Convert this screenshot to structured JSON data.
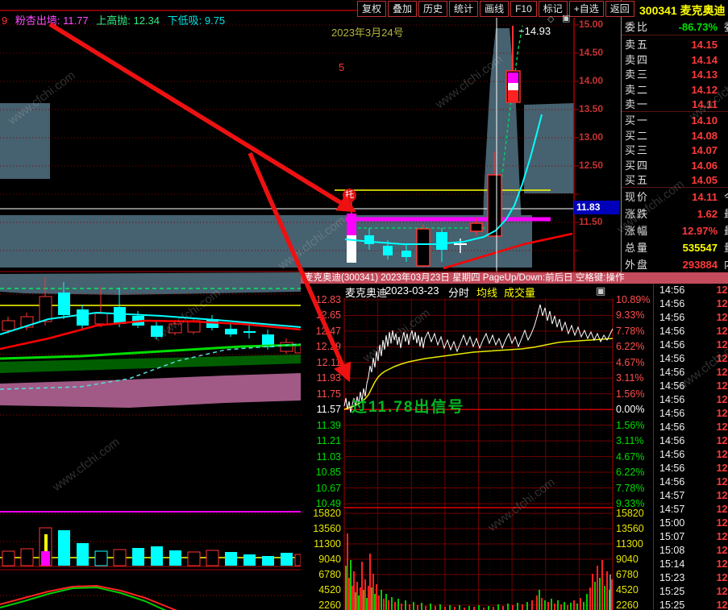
{
  "app": {
    "watermark": "www.cfchi.com"
  },
  "topbar": {
    "indicator_prefix": "9",
    "indicators": [
      {
        "label": "粉杏出墙",
        "value": "11.77",
        "color": "#ff4bff"
      },
      {
        "label": "上高抛",
        "value": "12.34",
        "color": "#33ee88"
      },
      {
        "label": "下低吸",
        "value": "9.75",
        "color": "#00e5e5"
      }
    ],
    "buttons": [
      "复权",
      "叠加",
      "历史",
      "统计",
      "画线",
      "F10",
      "标记",
      "+自选",
      "返回"
    ]
  },
  "main_chart": {
    "date_note": "2023年3月24号",
    "count_note": "5",
    "high_label": "~14.93",
    "tuo_badge": "托",
    "price_axis": [
      "15.00",
      "14.50",
      "14.00",
      "13.50",
      "13.00",
      "12.50",
      "11.50"
    ],
    "price_tag": "11.83",
    "diamond_icon": "◇",
    "panel_icon": "▣"
  },
  "quote_panel": {
    "code": "300341",
    "name": "麦克奥迪",
    "weibi": {
      "label": "委比",
      "value": "-86.73%",
      "suffix": "委"
    },
    "asks": [
      {
        "label": "卖五",
        "price": "14.15"
      },
      {
        "label": "卖四",
        "price": "14.14"
      },
      {
        "label": "卖三",
        "price": "14.13"
      },
      {
        "label": "卖二",
        "price": "14.12"
      },
      {
        "label": "卖一",
        "price": "14.11"
      }
    ],
    "bids": [
      {
        "label": "买一",
        "price": "14.10"
      },
      {
        "label": "买二",
        "price": "14.08"
      },
      {
        "label": "买三",
        "price": "14.07"
      },
      {
        "label": "买四",
        "price": "14.06"
      },
      {
        "label": "买五",
        "price": "14.05"
      }
    ],
    "stats": [
      {
        "label": "现价",
        "value": "14.11",
        "suffix": "今",
        "color": "#ff3a3a"
      },
      {
        "label": "涨跌",
        "value": "1.62",
        "suffix": "最",
        "color": "#ff3a3a"
      },
      {
        "label": "涨幅",
        "value": "12.97%",
        "suffix": "最",
        "color": "#ff3a3a"
      },
      {
        "label": "总量",
        "value": "535547",
        "suffix": "量",
        "color": "#ffff00"
      },
      {
        "label": "外盘",
        "value": "293884",
        "suffix": "内",
        "color": "#ff3a3a"
      }
    ]
  },
  "info_bar": {
    "text": "麦克奥迪(300341) 2023年03月23日 星期四 PageUp/Down:前后日 空格键:操作"
  },
  "intraday": {
    "title": "麦克奥迪",
    "date": "2023-03-23",
    "mode": "分时",
    "legend_avg": "均线",
    "legend_vol": "成交量",
    "panel_icon": "▣",
    "signal": "过11.78出信号",
    "left_axis": [
      "12.83",
      "12.65",
      "12.47",
      "12.29",
      "12.11",
      "11.93",
      "11.75",
      "11.57",
      "11.39",
      "11.21",
      "11.03",
      "10.85",
      "10.67",
      "10.49"
    ],
    "right_axis": [
      "10.89%",
      "9.33%",
      "7.78%",
      "6.22%",
      "4.67%",
      "3.11%",
      "1.56%",
      "0.00%",
      "1.56%",
      "3.11%",
      "4.67%",
      "6.22%",
      "7.78%",
      "9.33%"
    ],
    "vol_axis": [
      "15820",
      "13560",
      "11300",
      "9040",
      "6780",
      "4520",
      "2260"
    ]
  },
  "tape": {
    "rows": [
      {
        "time": "14:56",
        "price": "12."
      },
      {
        "time": "14:56",
        "price": "12."
      },
      {
        "time": "14:56",
        "price": "12."
      },
      {
        "time": "14:56",
        "price": "12."
      },
      {
        "time": "14:56",
        "price": "12."
      },
      {
        "time": "14:56",
        "price": "12."
      },
      {
        "time": "14:56",
        "price": "12."
      },
      {
        "time": "14:56",
        "price": "12."
      },
      {
        "time": "14:56",
        "price": "12."
      },
      {
        "time": "14:56",
        "price": "12."
      },
      {
        "time": "14:56",
        "price": "12."
      },
      {
        "time": "14:56",
        "price": "12."
      },
      {
        "time": "14:56",
        "price": "12."
      },
      {
        "time": "14:56",
        "price": "12."
      },
      {
        "time": "14:56",
        "price": "12."
      },
      {
        "time": "14:57",
        "price": "12."
      },
      {
        "time": "14:57",
        "price": "12."
      },
      {
        "time": "15:00",
        "price": "12."
      },
      {
        "time": "15:07",
        "price": "12."
      },
      {
        "time": "15:08",
        "price": "12."
      },
      {
        "time": "15:14",
        "price": "12."
      },
      {
        "time": "15:23",
        "price": "12."
      },
      {
        "time": "15:25",
        "price": "12."
      },
      {
        "time": "15:25",
        "price": "12."
      }
    ]
  },
  "chart_data": [
    {
      "type": "candlestick",
      "name": "daily-kline-300341",
      "ylim": [
        11.5,
        15.0
      ],
      "tick_labels": [
        "15.00",
        "14.50",
        "14.00",
        "13.50",
        "13.00",
        "12.50",
        "11.50"
      ],
      "annotations": [
        "14.93 day-high wick",
        "11.83 current-price tag",
        "托 support marker",
        "2023年3月24号",
        "5"
      ]
    },
    {
      "type": "line",
      "name": "intraday-price",
      "prev_close": "11.57",
      "axis_high": "12.83",
      "axis_low": "10.49",
      "points": [
        0,
        132,
        2,
        122,
        4,
        136,
        6,
        126,
        8,
        140,
        10,
        130,
        12,
        122,
        14,
        133,
        16,
        120,
        18,
        130,
        20,
        114,
        22,
        126,
        24,
        110,
        26,
        120,
        28,
        104,
        30,
        96,
        32,
        82,
        34,
        90,
        36,
        72,
        38,
        84,
        40,
        64,
        42,
        76,
        44,
        56,
        46,
        70,
        48,
        50,
        50,
        62,
        52,
        44,
        54,
        58,
        56,
        40,
        58,
        54,
        60,
        38,
        62,
        50,
        64,
        42,
        66,
        56,
        68,
        46,
        70,
        60,
        72,
        48,
        74,
        40,
        76,
        52,
        78,
        42,
        80,
        56,
        82,
        44,
        84,
        38,
        86,
        50,
        88,
        40,
        90,
        54,
        92,
        44,
        94,
        58,
        96,
        46,
        98,
        60,
        100,
        48,
        104,
        40,
        108,
        52,
        112,
        42,
        116,
        56,
        120,
        46,
        124,
        60,
        128,
        50,
        132,
        62,
        136,
        52,
        140,
        64,
        144,
        54,
        148,
        44,
        152,
        56,
        156,
        46,
        160,
        58,
        164,
        48,
        168,
        60,
        172,
        50,
        176,
        42,
        180,
        54,
        184,
        44,
        188,
        56,
        192,
        48,
        196,
        60,
        200,
        50,
        204,
        42,
        208,
        54,
        212,
        46,
        216,
        58,
        220,
        48,
        224,
        38,
        228,
        50,
        232,
        42,
        236,
        32,
        240,
        18,
        243,
        6,
        246,
        20,
        249,
        10,
        252,
        26,
        255,
        14,
        258,
        30,
        261,
        20,
        264,
        34,
        267,
        24,
        270,
        38,
        274,
        28,
        278,
        42,
        282,
        32,
        286,
        44,
        290,
        34,
        294,
        46,
        298,
        38,
        302,
        48,
        306,
        40,
        310,
        50,
        314,
        42,
        318,
        52,
        322,
        44,
        326,
        50,
        330,
        42,
        333,
        36
      ]
    },
    {
      "type": "line",
      "name": "intraday-average",
      "points": [
        0,
        136,
        6,
        134,
        12,
        132,
        18,
        129,
        24,
        125,
        30,
        118,
        34,
        110,
        38,
        102,
        42,
        96,
        46,
        92,
        50,
        89,
        56,
        86,
        62,
        83,
        70,
        80,
        80,
        77,
        90,
        75,
        100,
        73,
        115,
        71,
        130,
        69,
        145,
        67,
        160,
        65,
        175,
        64,
        190,
        63,
        205,
        62,
        220,
        61,
        235,
        59,
        245,
        57,
        255,
        55,
        265,
        53,
        275,
        52,
        290,
        51,
        305,
        50,
        320,
        49,
        333,
        48
      ]
    },
    {
      "type": "bar",
      "name": "intraday-volume",
      "bars": [
        [
          1,
          55,
          "g"
        ],
        [
          3,
          95,
          "r"
        ],
        [
          5,
          40,
          "r"
        ],
        [
          7,
          62,
          "g"
        ],
        [
          9,
          30,
          "r"
        ],
        [
          11,
          48,
          "r"
        ],
        [
          13,
          22,
          "g"
        ],
        [
          15,
          35,
          "r"
        ],
        [
          17,
          18,
          "g"
        ],
        [
          19,
          28,
          "r"
        ],
        [
          21,
          60,
          "r"
        ],
        [
          23,
          25,
          "g"
        ],
        [
          25,
          38,
          "r"
        ],
        [
          27,
          15,
          "g"
        ],
        [
          29,
          30,
          "r"
        ],
        [
          31,
          70,
          "r"
        ],
        [
          33,
          28,
          "g"
        ],
        [
          35,
          45,
          "r"
        ],
        [
          37,
          20,
          "g"
        ],
        [
          39,
          32,
          "r"
        ],
        [
          42,
          18,
          "r"
        ],
        [
          45,
          25,
          "g"
        ],
        [
          48,
          14,
          "r"
        ],
        [
          51,
          20,
          "g"
        ],
        [
          54,
          12,
          "r"
        ],
        [
          58,
          16,
          "g"
        ],
        [
          62,
          10,
          "r"
        ],
        [
          66,
          14,
          "g"
        ],
        [
          70,
          8,
          "r"
        ],
        [
          75,
          12,
          "g"
        ],
        [
          80,
          7,
          "r"
        ],
        [
          85,
          10,
          "g"
        ],
        [
          90,
          6,
          "r"
        ],
        [
          95,
          9,
          "g"
        ],
        [
          100,
          5,
          "r"
        ],
        [
          106,
          8,
          "g"
        ],
        [
          112,
          5,
          "r"
        ],
        [
          118,
          7,
          "g"
        ],
        [
          124,
          4,
          "r"
        ],
        [
          130,
          6,
          "g"
        ],
        [
          136,
          4,
          "r"
        ],
        [
          142,
          6,
          "g"
        ],
        [
          148,
          3,
          "r"
        ],
        [
          154,
          5,
          "g"
        ],
        [
          160,
          4,
          "r"
        ],
        [
          166,
          6,
          "g"
        ],
        [
          172,
          3,
          "r"
        ],
        [
          178,
          5,
          "g"
        ],
        [
          184,
          4,
          "r"
        ],
        [
          190,
          7,
          "g"
        ],
        [
          196,
          5,
          "r"
        ],
        [
          202,
          8,
          "g"
        ],
        [
          208,
          6,
          "r"
        ],
        [
          214,
          9,
          "g"
        ],
        [
          220,
          7,
          "r"
        ],
        [
          226,
          10,
          "g"
        ],
        [
          232,
          12,
          "r"
        ],
        [
          238,
          18,
          "r"
        ],
        [
          241,
          25,
          "g"
        ],
        [
          244,
          15,
          "r"
        ],
        [
          248,
          12,
          "g"
        ],
        [
          252,
          10,
          "r"
        ],
        [
          256,
          14,
          "g"
        ],
        [
          260,
          8,
          "r"
        ],
        [
          264,
          12,
          "g"
        ],
        [
          268,
          7,
          "r"
        ],
        [
          272,
          10,
          "g"
        ],
        [
          276,
          6,
          "r"
        ],
        [
          280,
          9,
          "g"
        ],
        [
          284,
          12,
          "r"
        ],
        [
          288,
          8,
          "g"
        ],
        [
          292,
          15,
          "r"
        ],
        [
          296,
          10,
          "g"
        ],
        [
          300,
          20,
          "g"
        ],
        [
          304,
          28,
          "r"
        ],
        [
          307,
          45,
          "r"
        ],
        [
          310,
          35,
          "g"
        ],
        [
          313,
          55,
          "r"
        ],
        [
          316,
          40,
          "g"
        ],
        [
          319,
          62,
          "r"
        ],
        [
          322,
          30,
          "g"
        ],
        [
          325,
          48,
          "r"
        ],
        [
          328,
          25,
          "g"
        ],
        [
          331,
          38,
          "r"
        ]
      ]
    }
  ]
}
